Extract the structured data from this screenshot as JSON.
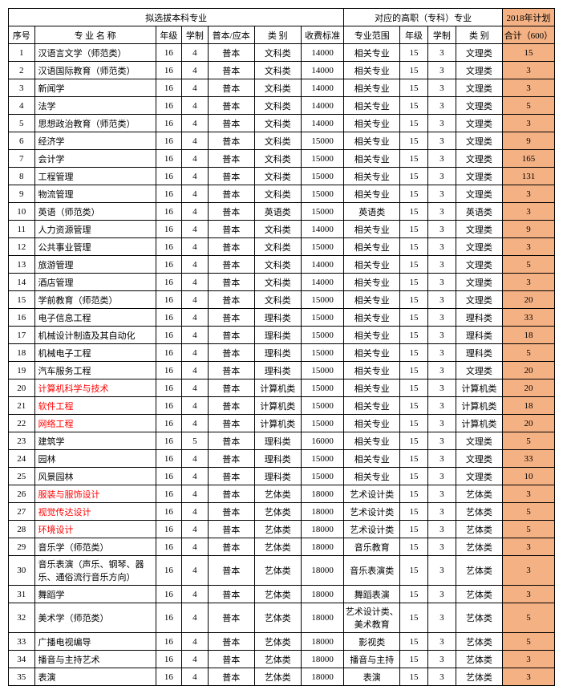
{
  "headers": {
    "group1": "拟选拔本科专业",
    "group2": "对应的高职（专科）专业",
    "group3": "2018年计划",
    "seq": "序号",
    "name": "专 业 名 称",
    "grade": "年级",
    "dur": "学制",
    "type": "普本/应本",
    "cat": "类   别",
    "fee": "收费标准",
    "scope": "专业范围",
    "grade2": "年级",
    "dur2": "学制",
    "cat2": "类   别",
    "plan": "合计（600）"
  },
  "rows": [
    {
      "seq": "1",
      "name": "汉语言文学（师范类）",
      "grade": "16",
      "dur": "4",
      "type": "普本",
      "cat": "文科类",
      "fee": "14000",
      "scope": "相关专业",
      "grade2": "15",
      "dur2": "3",
      "cat2": "文理类",
      "plan": "15",
      "red": false
    },
    {
      "seq": "2",
      "name": "汉语国际教育（师范类）",
      "grade": "16",
      "dur": "4",
      "type": "普本",
      "cat": "文科类",
      "fee": "14000",
      "scope": "相关专业",
      "grade2": "15",
      "dur2": "3",
      "cat2": "文理类",
      "plan": "3",
      "red": false
    },
    {
      "seq": "3",
      "name": "新闻学",
      "grade": "16",
      "dur": "4",
      "type": "普本",
      "cat": "文科类",
      "fee": "14000",
      "scope": "相关专业",
      "grade2": "15",
      "dur2": "3",
      "cat2": "文理类",
      "plan": "3",
      "red": false
    },
    {
      "seq": "4",
      "name": "法学",
      "grade": "16",
      "dur": "4",
      "type": "普本",
      "cat": "文科类",
      "fee": "14000",
      "scope": "相关专业",
      "grade2": "15",
      "dur2": "3",
      "cat2": "文理类",
      "plan": "5",
      "red": false
    },
    {
      "seq": "5",
      "name": "思想政治教育（师范类）",
      "grade": "16",
      "dur": "4",
      "type": "普本",
      "cat": "文科类",
      "fee": "14000",
      "scope": "相关专业",
      "grade2": "15",
      "dur2": "3",
      "cat2": "文理类",
      "plan": "3",
      "red": false
    },
    {
      "seq": "6",
      "name": "经济学",
      "grade": "16",
      "dur": "4",
      "type": "普本",
      "cat": "文科类",
      "fee": "15000",
      "scope": "相关专业",
      "grade2": "15",
      "dur2": "3",
      "cat2": "文理类",
      "plan": "9",
      "red": false
    },
    {
      "seq": "7",
      "name": "会计学",
      "grade": "16",
      "dur": "4",
      "type": "普本",
      "cat": "文科类",
      "fee": "15000",
      "scope": "相关专业",
      "grade2": "15",
      "dur2": "3",
      "cat2": "文理类",
      "plan": "165",
      "red": false
    },
    {
      "seq": "8",
      "name": "工程管理",
      "grade": "16",
      "dur": "4",
      "type": "普本",
      "cat": "文科类",
      "fee": "15000",
      "scope": "相关专业",
      "grade2": "15",
      "dur2": "3",
      "cat2": "文理类",
      "plan": "131",
      "red": false
    },
    {
      "seq": "9",
      "name": "物流管理",
      "grade": "16",
      "dur": "4",
      "type": "普本",
      "cat": "文科类",
      "fee": "15000",
      "scope": "相关专业",
      "grade2": "15",
      "dur2": "3",
      "cat2": "文理类",
      "plan": "3",
      "red": false
    },
    {
      "seq": "10",
      "name": "英语（师范类）",
      "grade": "16",
      "dur": "4",
      "type": "普本",
      "cat": "英语类",
      "fee": "15000",
      "scope": "英语类",
      "grade2": "15",
      "dur2": "3",
      "cat2": "英语类",
      "plan": "3",
      "red": false
    },
    {
      "seq": "11",
      "name": "人力资源管理",
      "grade": "16",
      "dur": "4",
      "type": "普本",
      "cat": "文科类",
      "fee": "14000",
      "scope": "相关专业",
      "grade2": "15",
      "dur2": "3",
      "cat2": "文理类",
      "plan": "9",
      "red": false
    },
    {
      "seq": "12",
      "name": "公共事业管理",
      "grade": "16",
      "dur": "4",
      "type": "普本",
      "cat": "文科类",
      "fee": "15000",
      "scope": "相关专业",
      "grade2": "15",
      "dur2": "3",
      "cat2": "文理类",
      "plan": "3",
      "red": false
    },
    {
      "seq": "13",
      "name": "旅游管理",
      "grade": "16",
      "dur": "4",
      "type": "普本",
      "cat": "文科类",
      "fee": "14000",
      "scope": "相关专业",
      "grade2": "15",
      "dur2": "3",
      "cat2": "文理类",
      "plan": "5",
      "red": false
    },
    {
      "seq": "14",
      "name": "酒店管理",
      "grade": "16",
      "dur": "4",
      "type": "普本",
      "cat": "文科类",
      "fee": "14000",
      "scope": "相关专业",
      "grade2": "15",
      "dur2": "3",
      "cat2": "文理类",
      "plan": "3",
      "red": false
    },
    {
      "seq": "15",
      "name": "学前教育（师范类）",
      "grade": "16",
      "dur": "4",
      "type": "普本",
      "cat": "文科类",
      "fee": "15000",
      "scope": "相关专业",
      "grade2": "15",
      "dur2": "3",
      "cat2": "文理类",
      "plan": "20",
      "red": false
    },
    {
      "seq": "16",
      "name": "电子信息工程",
      "grade": "16",
      "dur": "4",
      "type": "普本",
      "cat": "理科类",
      "fee": "15000",
      "scope": "相关专业",
      "grade2": "15",
      "dur2": "3",
      "cat2": "理科类",
      "plan": "33",
      "red": false
    },
    {
      "seq": "17",
      "name": "机械设计制造及其自动化",
      "grade": "16",
      "dur": "4",
      "type": "普本",
      "cat": "理科类",
      "fee": "15000",
      "scope": "相关专业",
      "grade2": "15",
      "dur2": "3",
      "cat2": "理科类",
      "plan": "18",
      "red": false
    },
    {
      "seq": "18",
      "name": "机械电子工程",
      "grade": "16",
      "dur": "4",
      "type": "普本",
      "cat": "理科类",
      "fee": "15000",
      "scope": "相关专业",
      "grade2": "15",
      "dur2": "3",
      "cat2": "理科类",
      "plan": "5",
      "red": false
    },
    {
      "seq": "19",
      "name": "汽车服务工程",
      "grade": "16",
      "dur": "4",
      "type": "普本",
      "cat": "理科类",
      "fee": "15000",
      "scope": "相关专业",
      "grade2": "15",
      "dur2": "3",
      "cat2": "文理类",
      "plan": "20",
      "red": false
    },
    {
      "seq": "20",
      "name": "计算机科学与技术",
      "grade": "16",
      "dur": "4",
      "type": "普本",
      "cat": "计算机类",
      "fee": "15000",
      "scope": "相关专业",
      "grade2": "15",
      "dur2": "3",
      "cat2": "计算机类",
      "plan": "20",
      "red": true
    },
    {
      "seq": "21",
      "name": "软件工程",
      "grade": "16",
      "dur": "4",
      "type": "普本",
      "cat": "计算机类",
      "fee": "15000",
      "scope": "相关专业",
      "grade2": "15",
      "dur2": "3",
      "cat2": "计算机类",
      "plan": "18",
      "red": true
    },
    {
      "seq": "22",
      "name": "网络工程",
      "grade": "16",
      "dur": "4",
      "type": "普本",
      "cat": "计算机类",
      "fee": "15000",
      "scope": "相关专业",
      "grade2": "15",
      "dur2": "3",
      "cat2": "计算机类",
      "plan": "20",
      "red": true
    },
    {
      "seq": "23",
      "name": "建筑学",
      "grade": "16",
      "dur": "5",
      "type": "普本",
      "cat": "理科类",
      "fee": "16000",
      "scope": "相关专业",
      "grade2": "15",
      "dur2": "3",
      "cat2": "文理类",
      "plan": "5",
      "red": false
    },
    {
      "seq": "24",
      "name": "园林",
      "grade": "16",
      "dur": "4",
      "type": "普本",
      "cat": "理科类",
      "fee": "15000",
      "scope": "相关专业",
      "grade2": "15",
      "dur2": "3",
      "cat2": "文理类",
      "plan": "33",
      "red": false
    },
    {
      "seq": "25",
      "name": "风景园林",
      "grade": "16",
      "dur": "4",
      "type": "普本",
      "cat": "理科类",
      "fee": "15000",
      "scope": "相关专业",
      "grade2": "15",
      "dur2": "3",
      "cat2": "文理类",
      "plan": "10",
      "red": false
    },
    {
      "seq": "26",
      "name": "服装与服饰设计",
      "grade": "16",
      "dur": "4",
      "type": "普本",
      "cat": "艺体类",
      "fee": "18000",
      "scope": "艺术设计类",
      "grade2": "15",
      "dur2": "3",
      "cat2": "艺体类",
      "plan": "3",
      "red": true
    },
    {
      "seq": "27",
      "name": "视觉传达设计",
      "grade": "16",
      "dur": "4",
      "type": "普本",
      "cat": "艺体类",
      "fee": "18000",
      "scope": "艺术设计类",
      "grade2": "15",
      "dur2": "3",
      "cat2": "艺体类",
      "plan": "5",
      "red": true
    },
    {
      "seq": "28",
      "name": "环境设计",
      "grade": "16",
      "dur": "4",
      "type": "普本",
      "cat": "艺体类",
      "fee": "18000",
      "scope": "艺术设计类",
      "grade2": "15",
      "dur2": "3",
      "cat2": "艺体类",
      "plan": "5",
      "red": true
    },
    {
      "seq": "29",
      "name": "音乐学（师范类）",
      "grade": "16",
      "dur": "4",
      "type": "普本",
      "cat": "艺体类",
      "fee": "18000",
      "scope": "音乐教育",
      "grade2": "15",
      "dur2": "3",
      "cat2": "艺体类",
      "plan": "3",
      "red": false
    },
    {
      "seq": "30",
      "name": "音乐表演（声乐、钢琴、器乐、通俗流行音乐方向）",
      "grade": "16",
      "dur": "4",
      "type": "普本",
      "cat": "艺体类",
      "fee": "18000",
      "scope": "音乐表演类",
      "grade2": "15",
      "dur2": "3",
      "cat2": "艺体类",
      "plan": "3",
      "red": false,
      "tall": true
    },
    {
      "seq": "31",
      "name": "舞蹈学",
      "grade": "16",
      "dur": "4",
      "type": "普本",
      "cat": "艺体类",
      "fee": "18000",
      "scope": "舞蹈表演",
      "grade2": "15",
      "dur2": "3",
      "cat2": "艺体类",
      "plan": "3",
      "red": false
    },
    {
      "seq": "32",
      "name": "美术学（师范类）",
      "grade": "16",
      "dur": "4",
      "type": "普本",
      "cat": "艺体类",
      "fee": "18000",
      "scope": "艺术设计类、美术教育",
      "grade2": "15",
      "dur2": "3",
      "cat2": "艺体类",
      "plan": "5",
      "red": false,
      "tall": true
    },
    {
      "seq": "33",
      "name": "广播电视编导",
      "grade": "16",
      "dur": "4",
      "type": "普本",
      "cat": "艺体类",
      "fee": "18000",
      "scope": "影视类",
      "grade2": "15",
      "dur2": "3",
      "cat2": "艺体类",
      "plan": "5",
      "red": false
    },
    {
      "seq": "34",
      "name": "播音与主持艺术",
      "grade": "16",
      "dur": "4",
      "type": "普本",
      "cat": "艺体类",
      "fee": "18000",
      "scope": "播音与主持",
      "grade2": "15",
      "dur2": "3",
      "cat2": "艺体类",
      "plan": "3",
      "red": false
    },
    {
      "seq": "35",
      "name": "表演",
      "grade": "16",
      "dur": "4",
      "type": "普本",
      "cat": "艺体类",
      "fee": "18000",
      "scope": "表演",
      "grade2": "15",
      "dur2": "3",
      "cat2": "艺体类",
      "plan": "3",
      "red": false
    }
  ]
}
